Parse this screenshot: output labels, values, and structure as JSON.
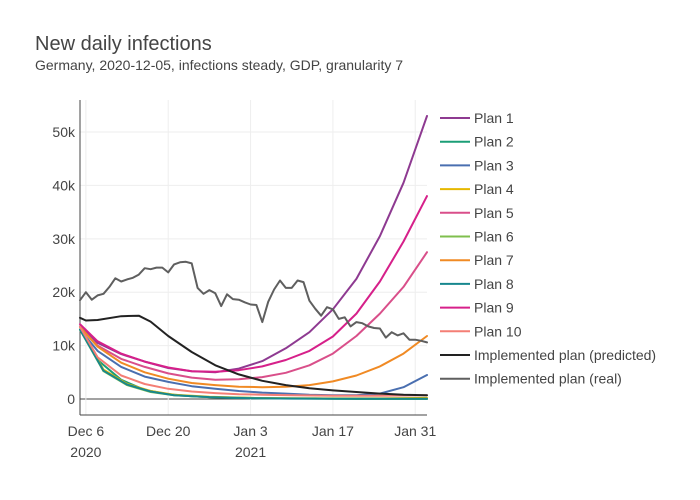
{
  "chart_data": {
    "type": "line",
    "title": "New daily infections",
    "subtitle": "Germany, 2020-12-05, infections steady, GDP, granularity 7",
    "xlabel": "",
    "ylabel": "",
    "x_start": "2020-12-05",
    "x_end": "2021-02-02",
    "ylim": [
      -3000,
      56000
    ],
    "yticks": [
      0,
      10000,
      20000,
      30000,
      40000,
      50000
    ],
    "ytick_labels": [
      "0",
      "10k",
      "20k",
      "30k",
      "40k",
      "50k"
    ],
    "xticks": [
      "2020-12-06",
      "2020-12-20",
      "2021-01-03",
      "2021-01-17",
      "2021-01-31"
    ],
    "xtick_labels": [
      [
        "Dec 6",
        "2020"
      ],
      [
        "Dec 20",
        ""
      ],
      [
        "Jan 3",
        "2021"
      ],
      [
        "Jan 17",
        ""
      ],
      [
        "Jan 31",
        ""
      ]
    ],
    "legend_position": "right",
    "series": [
      {
        "name": "Plan 1",
        "color": "#8e3a91",
        "x": [
          "2020-12-05",
          "2020-12-08",
          "2020-12-12",
          "2020-12-16",
          "2020-12-20",
          "2020-12-24",
          "2020-12-28",
          "2021-01-01",
          "2021-01-05",
          "2021-01-09",
          "2021-01-13",
          "2021-01-17",
          "2021-01-21",
          "2021-01-25",
          "2021-01-29",
          "2021-02-02"
        ],
        "values": [
          13500,
          10500,
          8400,
          7000,
          5800,
          5200,
          5000,
          5700,
          7100,
          9500,
          12500,
          16800,
          22500,
          30500,
          40500,
          53000
        ]
      },
      {
        "name": "Plan 2",
        "color": "#1b9e77",
        "x": [
          "2020-12-05",
          "2020-12-08",
          "2020-12-12",
          "2020-12-16",
          "2020-12-20",
          "2020-12-24",
          "2020-12-28",
          "2021-01-01",
          "2021-01-07",
          "2021-01-14",
          "2021-01-21",
          "2021-01-28",
          "2021-02-02"
        ],
        "values": [
          13000,
          7300,
          3600,
          1700,
          900,
          500,
          300,
          200,
          100,
          100,
          0,
          0,
          0
        ]
      },
      {
        "name": "Plan 3",
        "color": "#4a6fb0",
        "x": [
          "2020-12-05",
          "2020-12-08",
          "2020-12-12",
          "2020-12-16",
          "2020-12-20",
          "2020-12-24",
          "2020-12-28",
          "2021-01-01",
          "2021-01-05",
          "2021-01-09",
          "2021-01-13",
          "2021-01-17",
          "2021-01-21",
          "2021-01-25",
          "2021-01-29",
          "2021-02-02"
        ],
        "values": [
          13000,
          9000,
          6000,
          4200,
          3200,
          2400,
          1900,
          1500,
          1200,
          1000,
          800,
          700,
          700,
          1000,
          2200,
          4500
        ]
      },
      {
        "name": "Plan 4",
        "color": "#e6b800",
        "x": [
          "2020-12-05",
          "2020-12-09",
          "2020-12-13",
          "2020-12-17",
          "2020-12-21",
          "2020-12-27",
          "2021-01-03",
          "2021-01-10",
          "2021-01-17",
          "2021-01-24",
          "2021-02-02"
        ],
        "values": [
          13000,
          5500,
          2800,
          1500,
          800,
          400,
          200,
          100,
          100,
          100,
          200
        ]
      },
      {
        "name": "Plan 5",
        "color": "#d94f8a",
        "x": [
          "2020-12-05",
          "2020-12-08",
          "2020-12-12",
          "2020-12-16",
          "2020-12-20",
          "2020-12-24",
          "2020-12-28",
          "2021-01-01",
          "2021-01-05",
          "2021-01-09",
          "2021-01-13",
          "2021-01-17",
          "2021-01-21",
          "2021-01-25",
          "2021-01-29",
          "2021-02-02"
        ],
        "values": [
          13500,
          10000,
          7500,
          6000,
          4800,
          4000,
          3600,
          3700,
          4100,
          4900,
          6300,
          8500,
          11800,
          16000,
          21000,
          27500
        ]
      },
      {
        "name": "Plan 6",
        "color": "#7fbf4d",
        "x": [
          "2020-12-05",
          "2020-12-09",
          "2020-12-13",
          "2020-12-17",
          "2020-12-21",
          "2020-12-27",
          "2021-01-03",
          "2021-01-10",
          "2021-01-17",
          "2021-01-24",
          "2021-02-02"
        ],
        "values": [
          13000,
          5200,
          2600,
          1300,
          700,
          350,
          200,
          100,
          50,
          50,
          50
        ]
      },
      {
        "name": "Plan 7",
        "color": "#f08a24",
        "x": [
          "2020-12-05",
          "2020-12-08",
          "2020-12-12",
          "2020-12-16",
          "2020-12-20",
          "2020-12-24",
          "2020-12-28",
          "2021-01-01",
          "2021-01-05",
          "2021-01-09",
          "2021-01-13",
          "2021-01-17",
          "2021-01-21",
          "2021-01-25",
          "2021-01-29",
          "2021-02-02"
        ],
        "values": [
          13500,
          9800,
          6800,
          5000,
          3800,
          3000,
          2600,
          2300,
          2200,
          2300,
          2600,
          3300,
          4400,
          6100,
          8500,
          11800
        ]
      },
      {
        "name": "Plan 8",
        "color": "#17878e",
        "x": [
          "2020-12-05",
          "2020-12-09",
          "2020-12-13",
          "2020-12-17",
          "2020-12-21",
          "2020-12-27",
          "2021-01-03",
          "2021-01-10",
          "2021-01-17",
          "2021-01-24",
          "2021-02-02"
        ],
        "values": [
          13000,
          5300,
          2700,
          1400,
          700,
          350,
          150,
          80,
          50,
          50,
          50
        ]
      },
      {
        "name": "Plan 9",
        "color": "#d6208a",
        "x": [
          "2020-12-05",
          "2020-12-08",
          "2020-12-12",
          "2020-12-16",
          "2020-12-20",
          "2020-12-24",
          "2020-12-28",
          "2021-01-01",
          "2021-01-05",
          "2021-01-09",
          "2021-01-13",
          "2021-01-17",
          "2021-01-21",
          "2021-01-25",
          "2021-01-29",
          "2021-02-02"
        ],
        "values": [
          14000,
          10800,
          8500,
          7000,
          5900,
          5200,
          5100,
          5400,
          6100,
          7300,
          9000,
          11700,
          16000,
          22000,
          29500,
          38000
        ]
      },
      {
        "name": "Plan 10",
        "color": "#f47e75",
        "x": [
          "2020-12-05",
          "2020-12-08",
          "2020-12-12",
          "2020-12-16",
          "2020-12-20",
          "2020-12-24",
          "2020-12-28",
          "2021-01-01",
          "2021-01-05",
          "2021-01-10",
          "2021-01-17",
          "2021-01-24",
          "2021-02-02"
        ],
        "values": [
          13500,
          7800,
          4400,
          2800,
          1900,
          1400,
          1100,
          900,
          800,
          700,
          600,
          600,
          700
        ]
      },
      {
        "name": "Implemented plan (predicted)",
        "color": "#222222",
        "x": [
          "2020-12-05",
          "2020-12-06",
          "2020-12-08",
          "2020-12-12",
          "2020-12-15",
          "2020-12-17",
          "2020-12-20",
          "2020-12-24",
          "2020-12-28",
          "2021-01-01",
          "2021-01-05",
          "2021-01-09",
          "2021-01-13",
          "2021-01-17",
          "2021-01-21",
          "2021-01-25",
          "2021-01-29",
          "2021-02-02"
        ],
        "values": [
          15200,
          14700,
          14800,
          15500,
          15600,
          14500,
          11800,
          8800,
          6300,
          4600,
          3400,
          2600,
          2000,
          1600,
          1300,
          1000,
          800,
          700
        ]
      },
      {
        "name": "Implemented plan (real)",
        "color": "#5f5f5f",
        "x": [
          "2020-12-05",
          "2020-12-06",
          "2020-12-07",
          "2020-12-08",
          "2020-12-09",
          "2020-12-10",
          "2020-12-11",
          "2020-12-12",
          "2020-12-13",
          "2020-12-14",
          "2020-12-15",
          "2020-12-16",
          "2020-12-17",
          "2020-12-18",
          "2020-12-19",
          "2020-12-20",
          "2020-12-21",
          "2020-12-22",
          "2020-12-23",
          "2020-12-24",
          "2020-12-25",
          "2020-12-26",
          "2020-12-27",
          "2020-12-28",
          "2020-12-29",
          "2020-12-30",
          "2020-12-31",
          "2021-01-01",
          "2021-01-02",
          "2021-01-03",
          "2021-01-04",
          "2021-01-05",
          "2021-01-06",
          "2021-01-07",
          "2021-01-08",
          "2021-01-09",
          "2021-01-10",
          "2021-01-11",
          "2021-01-12",
          "2021-01-13",
          "2021-01-14",
          "2021-01-15",
          "2021-01-16",
          "2021-01-17",
          "2021-01-18",
          "2021-01-19",
          "2021-01-20",
          "2021-01-21",
          "2021-01-22",
          "2021-01-23",
          "2021-01-24",
          "2021-01-25",
          "2021-01-26",
          "2021-01-27",
          "2021-01-28",
          "2021-01-29",
          "2021-01-30",
          "2021-01-31",
          "2021-02-01",
          "2021-02-02"
        ],
        "values": [
          18500,
          20000,
          18600,
          19400,
          19700,
          21000,
          22600,
          22000,
          22400,
          22700,
          23300,
          24500,
          24300,
          24600,
          24600,
          23700,
          25200,
          25600,
          25700,
          25400,
          20800,
          19700,
          20400,
          19800,
          17400,
          19600,
          18700,
          18600,
          18100,
          17700,
          17600,
          14400,
          18200,
          20500,
          22200,
          20800,
          20800,
          22200,
          21900,
          18400,
          16900,
          15600,
          17200,
          16800,
          15000,
          15300,
          13600,
          14400,
          14200,
          13600,
          13300,
          13200,
          11500,
          12500,
          11900,
          12300,
          11100,
          11100,
          10900,
          10600
        ]
      }
    ]
  }
}
